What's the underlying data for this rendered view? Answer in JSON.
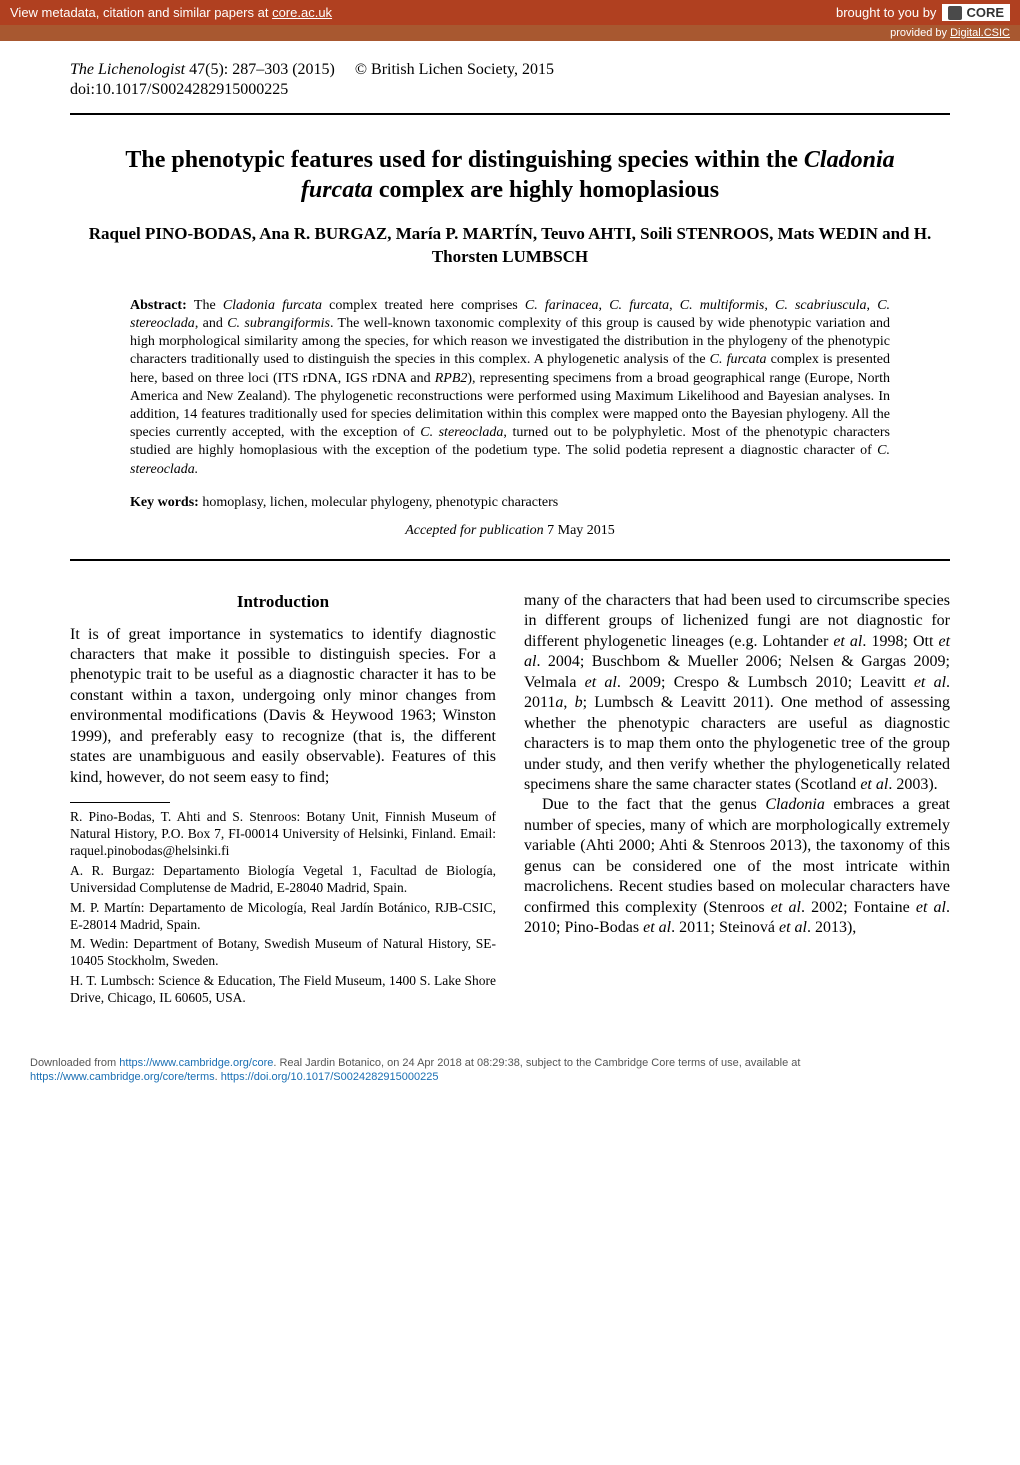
{
  "banner": {
    "left_text": "View metadata, citation and similar papers at ",
    "left_link": "core.ac.uk",
    "right_prefix": "brought to you by ",
    "logo_text": "CORE",
    "provided_prefix": "provided by ",
    "provided_link": "Digital.CSIC"
  },
  "header": {
    "journal": "The Lichenologist",
    "volume_issue": " 47(5): 287–303 (2015)",
    "copyright": "© British Lichen Society, 2015",
    "doi": "doi:10.1017/S0024282915000225"
  },
  "title": {
    "line1": "The phenotypic features used for distinguishing species within the",
    "species": "Cladonia furcata",
    "line2": " complex are highly homoplasious"
  },
  "authors": "Raquel PINO-BODAS, Ana R. BURGAZ, María P. MARTÍN, Teuvo AHTI, Soili STENROOS, Mats WEDIN and H. Thorsten LUMBSCH",
  "abstract": {
    "label": "Abstract: ",
    "t1": "The ",
    "s1": "Cladonia furcata",
    "t2": " complex treated here comprises ",
    "s2": "C. farinacea",
    "t3": ", ",
    "s3": "C. furcata",
    "t4": ", ",
    "s4": "C. multiformis",
    "t5": ", ",
    "s5": "C. scabriuscula",
    "t6": ", ",
    "s6": "C. stereoclada",
    "t7": ", and ",
    "s7": "C. subrangiformis",
    "t8": ". The well-known taxonomic complexity of this group is caused by wide phenotypic variation and high morphological similarity among the species, for which reason we investigated the distribution in the phylogeny of the phenotypic characters traditionally used to distinguish the species in this complex. A phylogenetic analysis of the ",
    "s8": "C. furcata",
    "t9": " complex is presented here, based on three loci (ITS rDNA, IGS rDNA and ",
    "s9": "RPB2",
    "t10": "), representing specimens from a broad geographical range (Europe, North America and New Zealand). The phylogenetic reconstructions were performed using Maximum Likelihood and Bayesian analyses. In addition, 14 features traditionally used for species delimitation within this complex were mapped onto the Bayesian phylogeny. All the species currently accepted, with the exception of ",
    "s10": "C. stereoclada",
    "t11": ", turned out to be polyphyletic. Most of the phenotypic characters studied are highly homoplasious with the exception of the podetium type. The solid podetia represent a diagnostic character of ",
    "s11": "C. stereoclada.",
    "t12": ""
  },
  "keywords": {
    "label": "Key words: ",
    "text": "homoplasy, lichen, molecular phylogeny, phenotypic characters"
  },
  "accepted": {
    "label": "Accepted for publication ",
    "date": "7 May 2015"
  },
  "intro": {
    "heading": "Introduction",
    "para1": "It is of great importance in systematics to identify diagnostic characters that make it possible to distinguish species. For a phenotypic trait to be useful as a diagnostic character it has to be constant within a taxon, undergoing only minor changes from environmental modifications (Davis & Heywood 1963; Winston 1999), and preferably easy to recognize (that is, the different states are unambiguous and easily observable). Features of this kind, however, do not seem easy to find;"
  },
  "col2": {
    "p1a": "many of the characters that had been used to circumscribe species in different groups of lichenized fungi are not diagnostic for different phylogenetic lineages (e.g. Lohtander ",
    "p1b": "et al",
    "p1c": ". 1998; Ott ",
    "p1d": "et al",
    "p1e": ". 2004; Buschbom & Mueller 2006; Nelsen & Gargas 2009; Velmala ",
    "p1f": "et al",
    "p1g": ". 2009; Crespo & Lumbsch 2010; Leavitt ",
    "p1h": "et al",
    "p1i": ". 2011",
    "p1j": "a",
    "p1k": ", ",
    "p1l": "b",
    "p1m": "; Lumbsch & Leavitt 2011). One method of assessing whether the phenotypic characters are useful as diagnostic characters is to map them onto the phylogenetic tree of the group under study, and then verify whether the phylogenetically related specimens share the same character states (Scotland ",
    "p1n": "et al",
    "p1o": ". 2003).",
    "p2a": "Due to the fact that the genus ",
    "p2b": "Cladonia",
    "p2c": " embraces a great number of species, many of which are morphologically extremely variable (Ahti 2000; Ahti & Stenroos 2013), the taxonomy of this genus can be considered one of the most intricate within macrolichens. Recent studies based on molecular characters have confirmed this complexity (Stenroos ",
    "p2d": "et al",
    "p2e": ". 2002; Fontaine ",
    "p2f": "et al",
    "p2g": ". 2010; Pino-Bodas ",
    "p2h": "et al",
    "p2i": ". 2011; Steinová ",
    "p2j": "et al",
    "p2k": ". 2013),"
  },
  "affiliations": {
    "a1": "R. Pino-Bodas, T. Ahti and S. Stenroos: Botany Unit, Finnish Museum of Natural History, P.O. Box 7, FI-00014 University of Helsinki, Finland. Email: raquel.pinobodas@helsinki.fi",
    "a2": "A. R. Burgaz: Departamento Biología Vegetal 1, Facultad de Biología, Universidad Complutense de Madrid, E-28040 Madrid, Spain.",
    "a3": "M. P. Martín: Departamento de Micología, Real Jardín Botánico, RJB-CSIC, E-28014 Madrid, Spain.",
    "a4": "M. Wedin: Department of Botany, Swedish Museum of Natural History, SE-10405 Stockholm, Sweden.",
    "a5": "H. T. Lumbsch: Science & Education, The Field Museum, 1400 S. Lake Shore Drive, Chicago, IL 60605, USA."
  },
  "footer": {
    "line1a": "Downloaded from ",
    "link1": "https://www.cambridge.org/core",
    "line1b": ". Real Jardin Botanico, on 24 Apr 2018 at 08:29:38, subject to the Cambridge Core terms of use, available at",
    "link2": "https://www.cambridge.org/core/terms",
    "sep": ". ",
    "link3": "https://doi.org/10.1017/S0024282915000225"
  },
  "colors": {
    "banner_bg": "#b04020",
    "provided_bg": "#a85830",
    "banner_text": "#ffffff",
    "body_text": "#000000",
    "footer_text": "#555555",
    "link_blue": "#1a6fb3"
  },
  "typography": {
    "body_font": "Times New Roman",
    "banner_font": "Arial",
    "title_size_pt": 18,
    "body_size_pt": 12,
    "abstract_size_pt": 10.5,
    "footer_size_pt": 8
  }
}
